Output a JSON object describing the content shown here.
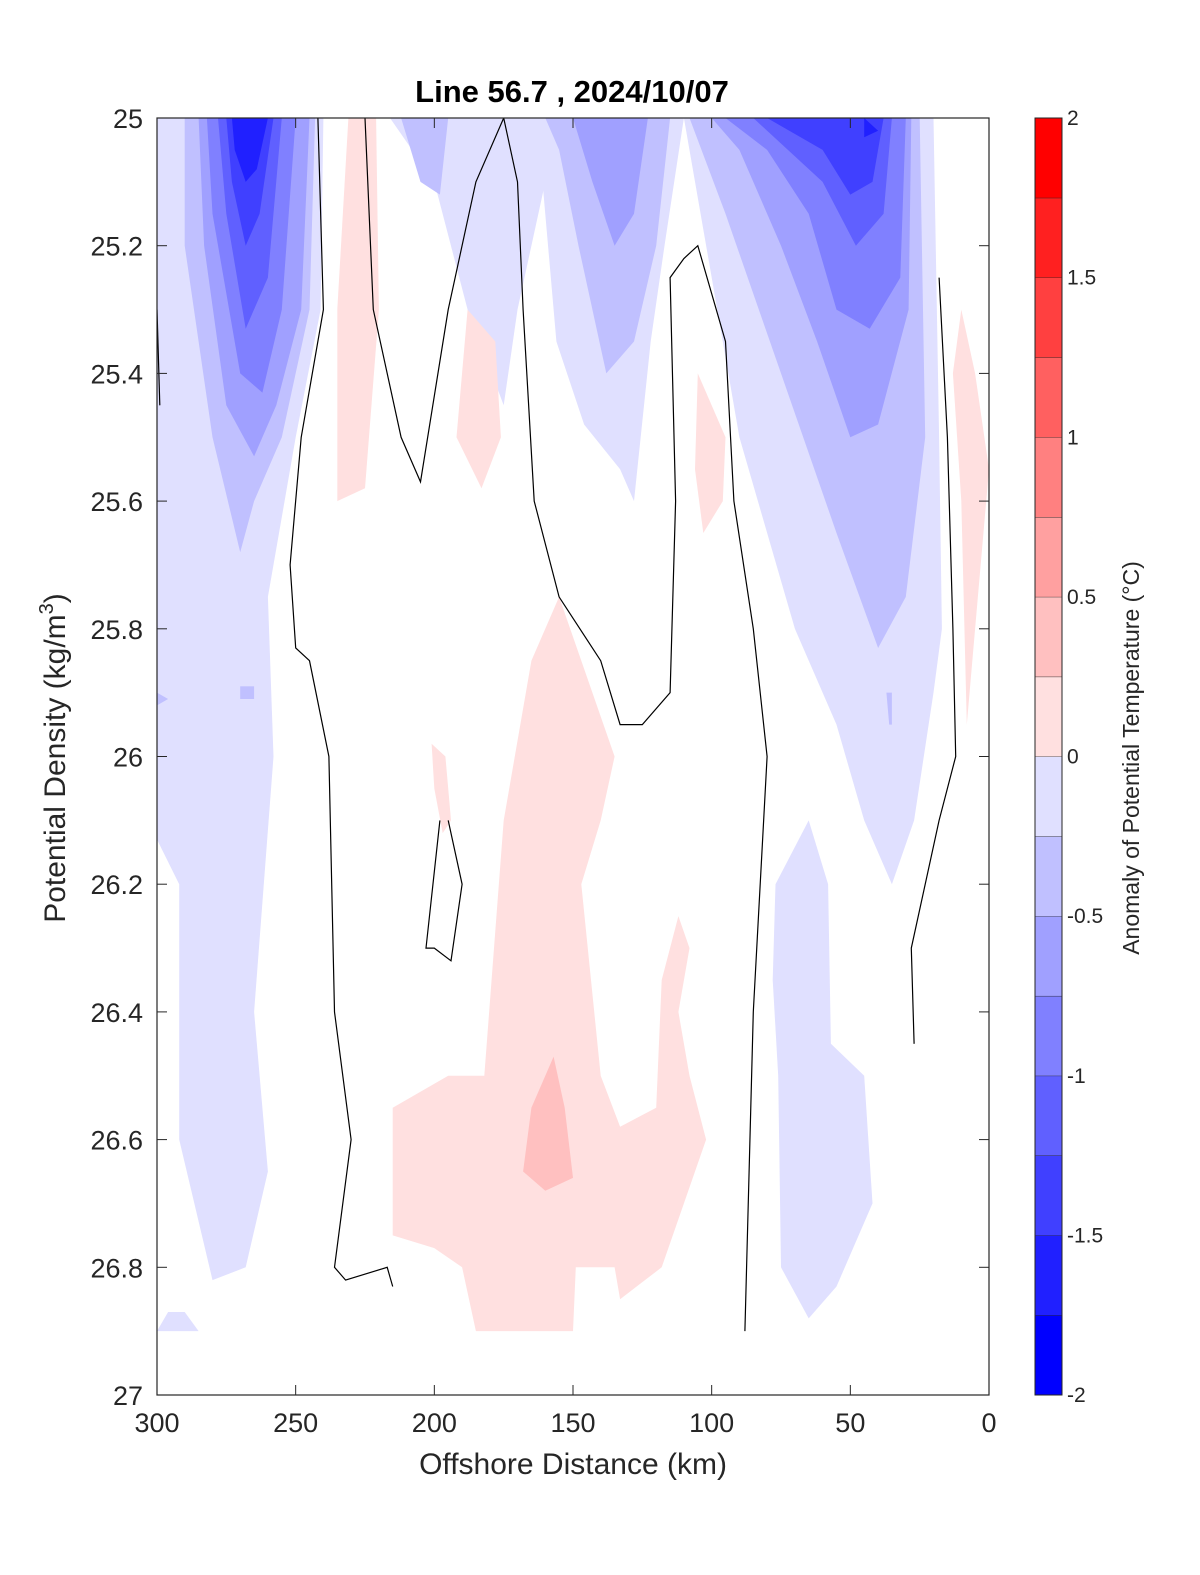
{
  "chart_data": {
    "type": "heatmap",
    "subtype": "filled-contour",
    "title": "Line 56.7 , 2024/10/07",
    "xlabel": "Offshore Distance (km)",
    "ylabel_main": "Potential Density (kg/m",
    "ylabel_sup": "3",
    "ylabel_end": ")",
    "x_axis": {
      "range": [
        300,
        0
      ],
      "reversed": true,
      "ticks": [
        300,
        250,
        200,
        150,
        100,
        50,
        0
      ]
    },
    "y_axis": {
      "range": [
        25,
        27
      ],
      "reversed": true,
      "ticks": [
        25,
        25.2,
        25.4,
        25.6,
        25.8,
        26,
        26.2,
        26.4,
        26.6,
        26.8,
        27
      ],
      "tick_labels": [
        "25",
        "25.2",
        "25.4",
        "25.6",
        "25.8",
        "26",
        "26.2",
        "26.4",
        "26.6",
        "26.8",
        "27"
      ]
    },
    "colorbar": {
      "label": "Anomaly of Potential Temperature (°C)",
      "range": [
        -2,
        2
      ],
      "ticks": [
        -2,
        -1.5,
        -1,
        -0.5,
        0,
        0.5,
        1,
        1.5,
        2
      ],
      "tick_labels": [
        "-2",
        "-1.5",
        "-1",
        "-0.5",
        "0",
        "0.5",
        "1",
        "1.5",
        "2"
      ],
      "levels": [
        -2,
        -1.75,
        -1.5,
        -1.25,
        -1,
        -0.75,
        -0.5,
        -0.25,
        0.25,
        0.5,
        0.75,
        1,
        1.25,
        1.5,
        1.75,
        2
      ],
      "colors": [
        "#0000ff",
        "#2020ff",
        "#4040ff",
        "#6060ff",
        "#8080ff",
        "#a0a0ff",
        "#c0c0ff",
        "#e0e0ff",
        "#ffffff",
        "#ffe0e0",
        "#ffc0c0",
        "#ffa0a0",
        "#ff8080",
        "#ff6060",
        "#ff4040",
        "#ff2020",
        "#ff0000"
      ]
    },
    "regions": [
      {
        "level": -0.25,
        "points": [
          [
            300,
            25
          ],
          [
            240,
            25
          ],
          [
            241,
            25.3
          ],
          [
            250,
            25.5
          ],
          [
            260,
            25.75
          ],
          [
            258,
            26
          ],
          [
            265,
            26.4
          ],
          [
            260,
            26.65
          ],
          [
            268,
            26.8
          ],
          [
            280,
            26.82
          ],
          [
            292,
            26.6
          ],
          [
            292,
            26.2
          ],
          [
            300,
            26.13
          ]
        ]
      },
      {
        "level": -0.25,
        "points": [
          [
            296,
            26.87
          ],
          [
            290,
            26.87
          ],
          [
            285,
            26.9
          ],
          [
            300,
            26.9
          ]
        ]
      },
      {
        "level": -0.25,
        "points": [
          [
            216,
            25
          ],
          [
            156,
            25
          ],
          [
            160,
            25.1
          ],
          [
            170,
            25.3
          ],
          [
            175,
            25.45
          ],
          [
            188,
            25.3
          ],
          [
            200,
            25.1
          ]
        ]
      },
      {
        "level": -0.25,
        "points": [
          [
            163,
            25
          ],
          [
            110,
            25
          ],
          [
            117,
            25.2
          ],
          [
            122,
            25.35
          ],
          [
            128,
            25.6
          ],
          [
            133,
            25.55
          ],
          [
            146,
            25.48
          ],
          [
            156,
            25.35
          ]
        ]
      },
      {
        "level": -0.25,
        "points": [
          [
            110,
            25
          ],
          [
            20,
            25
          ],
          [
            18,
            25.5
          ],
          [
            17,
            25.8
          ],
          [
            20,
            25.9
          ],
          [
            27,
            26.1
          ],
          [
            35,
            26.2
          ],
          [
            45,
            26.1
          ],
          [
            55,
            25.95
          ],
          [
            70,
            25.8
          ],
          [
            90,
            25.5
          ],
          [
            100,
            25.25
          ]
        ]
      },
      {
        "level": -0.25,
        "points": [
          [
            77,
            26.2
          ],
          [
            65,
            26.1
          ],
          [
            58,
            26.2
          ],
          [
            57,
            26.45
          ],
          [
            45,
            26.5
          ],
          [
            42,
            26.7
          ],
          [
            55,
            26.83
          ],
          [
            65,
            26.88
          ],
          [
            75,
            26.8
          ],
          [
            76,
            26.5
          ],
          [
            78,
            26.35
          ]
        ]
      },
      {
        "level": -0.5,
        "points": [
          [
            290,
            25
          ],
          [
            243,
            25
          ],
          [
            245,
            25.3
          ],
          [
            255,
            25.5
          ],
          [
            265,
            25.6
          ],
          [
            270,
            25.68
          ],
          [
            280,
            25.5
          ],
          [
            290,
            25.2
          ]
        ]
      },
      {
        "level": -0.5,
        "points": [
          [
            300,
            25.9
          ],
          [
            296,
            25.91
          ],
          [
            300,
            25.92
          ]
        ]
      },
      {
        "level": -0.5,
        "points": [
          [
            270,
            25.89
          ],
          [
            265,
            25.89
          ],
          [
            265,
            25.91
          ],
          [
            270,
            25.91
          ]
        ]
      },
      {
        "level": -0.5,
        "points": [
          [
            212,
            25
          ],
          [
            195,
            25
          ],
          [
            198,
            25.12
          ],
          [
            205,
            25.1
          ]
        ]
      },
      {
        "level": -0.5,
        "points": [
          [
            160,
            25
          ],
          [
            115,
            25
          ],
          [
            120,
            25.2
          ],
          [
            128,
            25.35
          ],
          [
            138,
            25.4
          ],
          [
            148,
            25.2
          ],
          [
            155,
            25.05
          ]
        ]
      },
      {
        "level": -0.5,
        "points": [
          [
            108,
            25
          ],
          [
            25,
            25
          ],
          [
            23,
            25.5
          ],
          [
            30,
            25.75
          ],
          [
            40,
            25.83
          ],
          [
            55,
            25.65
          ],
          [
            75,
            25.4
          ],
          [
            95,
            25.15
          ]
        ]
      },
      {
        "level": -0.5,
        "points": [
          [
            37,
            25.9
          ],
          [
            35,
            25.9
          ],
          [
            35,
            25.95
          ],
          [
            36,
            25.95
          ]
        ]
      },
      {
        "level": -0.75,
        "points": [
          [
            285,
            25
          ],
          [
            245,
            25
          ],
          [
            248,
            25.3
          ],
          [
            257,
            25.45
          ],
          [
            265,
            25.53
          ],
          [
            275,
            25.45
          ],
          [
            283,
            25.2
          ]
        ]
      },
      {
        "level": -0.75,
        "points": [
          [
            150,
            25
          ],
          [
            123,
            25
          ],
          [
            128,
            25.15
          ],
          [
            135,
            25.2
          ],
          [
            143,
            25.1
          ]
        ]
      },
      {
        "level": -0.75,
        "points": [
          [
            100,
            25
          ],
          [
            28,
            25
          ],
          [
            29,
            25.3
          ],
          [
            40,
            25.48
          ],
          [
            50,
            25.5
          ],
          [
            62,
            25.35
          ],
          [
            75,
            25.2
          ],
          [
            90,
            25.05
          ]
        ]
      },
      {
        "level": -1,
        "points": [
          [
            282,
            25
          ],
          [
            250,
            25
          ],
          [
            255,
            25.3
          ],
          [
            262,
            25.43
          ],
          [
            270,
            25.4
          ],
          [
            280,
            25.15
          ]
        ]
      },
      {
        "level": -1,
        "points": [
          [
            95,
            25
          ],
          [
            30,
            25
          ],
          [
            32,
            25.25
          ],
          [
            43,
            25.33
          ],
          [
            55,
            25.3
          ],
          [
            65,
            25.15
          ],
          [
            80,
            25.05
          ]
        ]
      },
      {
        "level": -1.25,
        "points": [
          [
            278,
            25
          ],
          [
            255,
            25
          ],
          [
            260,
            25.25
          ],
          [
            268,
            25.33
          ],
          [
            275,
            25.15
          ]
        ]
      },
      {
        "level": -1.25,
        "points": [
          [
            85,
            25
          ],
          [
            35,
            25
          ],
          [
            38,
            25.15
          ],
          [
            48,
            25.2
          ],
          [
            60,
            25.1
          ]
        ]
      },
      {
        "level": -1.5,
        "points": [
          [
            275,
            25
          ],
          [
            258,
            25
          ],
          [
            263,
            25.15
          ],
          [
            268,
            25.2
          ],
          [
            273,
            25.1
          ]
        ]
      },
      {
        "level": -1.5,
        "points": [
          [
            80,
            25
          ],
          [
            38,
            25
          ],
          [
            42,
            25.1
          ],
          [
            50,
            25.12
          ],
          [
            60,
            25.05
          ]
        ]
      },
      {
        "level": -1.75,
        "points": [
          [
            273,
            25
          ],
          [
            260,
            25
          ],
          [
            264,
            25.08
          ],
          [
            268,
            25.1
          ],
          [
            272,
            25.05
          ]
        ]
      },
      {
        "level": -1.75,
        "points": [
          [
            45,
            25
          ],
          [
            40,
            25.02
          ],
          [
            45,
            25.03
          ]
        ]
      },
      {
        "level": 0.25,
        "points": [
          [
            231,
            25
          ],
          [
            221,
            25
          ],
          [
            220,
            25.3
          ],
          [
            225,
            25.58
          ],
          [
            235,
            25.6
          ],
          [
            235,
            25.3
          ]
        ]
      },
      {
        "level": 0.25,
        "points": [
          [
            188,
            25.3
          ],
          [
            178,
            25.35
          ],
          [
            176,
            25.5
          ],
          [
            183,
            25.58
          ],
          [
            192,
            25.5
          ]
        ]
      },
      {
        "level": 0.25,
        "points": [
          [
            105,
            25.4
          ],
          [
            95,
            25.5
          ],
          [
            96,
            25.6
          ],
          [
            103,
            25.65
          ],
          [
            106,
            25.55
          ]
        ]
      },
      {
        "level": 0.25,
        "points": [
          [
            10,
            25.3
          ],
          [
            5,
            25.4
          ],
          [
            0,
            25.55
          ],
          [
            5,
            25.8
          ],
          [
            8,
            25.95
          ],
          [
            10,
            25.6
          ],
          [
            13,
            25.4
          ]
        ]
      },
      {
        "level": 0.25,
        "points": [
          [
            201,
            25.98
          ],
          [
            196,
            26
          ],
          [
            194,
            26.1
          ],
          [
            197,
            26.12
          ],
          [
            200,
            26.05
          ]
        ]
      },
      {
        "level": 0.25,
        "points": [
          [
            155,
            25.75
          ],
          [
            165,
            25.85
          ],
          [
            175,
            26.1
          ],
          [
            182,
            26.5
          ],
          [
            195,
            26.5
          ],
          [
            215,
            26.55
          ],
          [
            215,
            26.75
          ],
          [
            200,
            26.77
          ],
          [
            190,
            26.8
          ],
          [
            185,
            26.9
          ],
          [
            150,
            26.9
          ],
          [
            149,
            26.8
          ],
          [
            135,
            26.8
          ],
          [
            133,
            26.85
          ],
          [
            118,
            26.8
          ],
          [
            102,
            26.6
          ],
          [
            108,
            26.5
          ],
          [
            112,
            26.4
          ],
          [
            108,
            26.3
          ],
          [
            112,
            26.25
          ],
          [
            118,
            26.35
          ],
          [
            120,
            26.55
          ],
          [
            133,
            26.58
          ],
          [
            140,
            26.5
          ],
          [
            147,
            26.2
          ],
          [
            140,
            26.1
          ],
          [
            135,
            26.0
          ]
        ]
      },
      {
        "level": 0.5,
        "points": [
          [
            157,
            26.47
          ],
          [
            165,
            26.55
          ],
          [
            168,
            26.65
          ],
          [
            160,
            26.68
          ],
          [
            150,
            26.66
          ],
          [
            153,
            26.55
          ]
        ]
      }
    ],
    "contour_zero": [
      [
        [
          300,
          25.3
        ],
        [
          299,
          25.45
        ]
      ],
      [
        [
          242,
          25
        ],
        [
          240,
          25.3
        ],
        [
          248,
          25.5
        ],
        [
          252,
          25.7
        ],
        [
          250,
          25.83
        ],
        [
          245,
          25.85
        ],
        [
          238,
          26
        ],
        [
          236,
          26.4
        ],
        [
          230,
          26.6
        ],
        [
          236,
          26.8
        ],
        [
          232,
          26.82
        ],
        [
          217,
          26.8
        ],
        [
          215,
          26.83
        ]
      ],
      [
        [
          225,
          25
        ],
        [
          222,
          25.3
        ],
        [
          212,
          25.5
        ],
        [
          205,
          25.57
        ],
        [
          195,
          25.3
        ],
        [
          185,
          25.1
        ],
        [
          175,
          25
        ],
        [
          170,
          25.1
        ],
        [
          168,
          25.3
        ],
        [
          164,
          25.6
        ],
        [
          155,
          25.75
        ],
        [
          140,
          25.85
        ],
        [
          133,
          25.95
        ],
        [
          125,
          25.95
        ],
        [
          115,
          25.9
        ],
        [
          113,
          25.6
        ],
        [
          115,
          25.25
        ],
        [
          110,
          25.22
        ],
        [
          105,
          25.2
        ],
        [
          95,
          25.35
        ],
        [
          92,
          25.6
        ],
        [
          85,
          25.8
        ],
        [
          80,
          26.0
        ],
        [
          85,
          26.4
        ],
        [
          88,
          26.9
        ]
      ],
      [
        [
          198,
          26.1
        ],
        [
          203,
          26.3
        ],
        [
          200,
          26.3
        ],
        [
          194,
          26.32
        ],
        [
          190,
          26.2
        ],
        [
          195,
          26.1
        ]
      ],
      [
        [
          18,
          25.25
        ],
        [
          15,
          25.5
        ],
        [
          13,
          25.8
        ],
        [
          12,
          26
        ],
        [
          18,
          26.1
        ],
        [
          28,
          26.3
        ],
        [
          27,
          26.45
        ]
      ]
    ]
  }
}
